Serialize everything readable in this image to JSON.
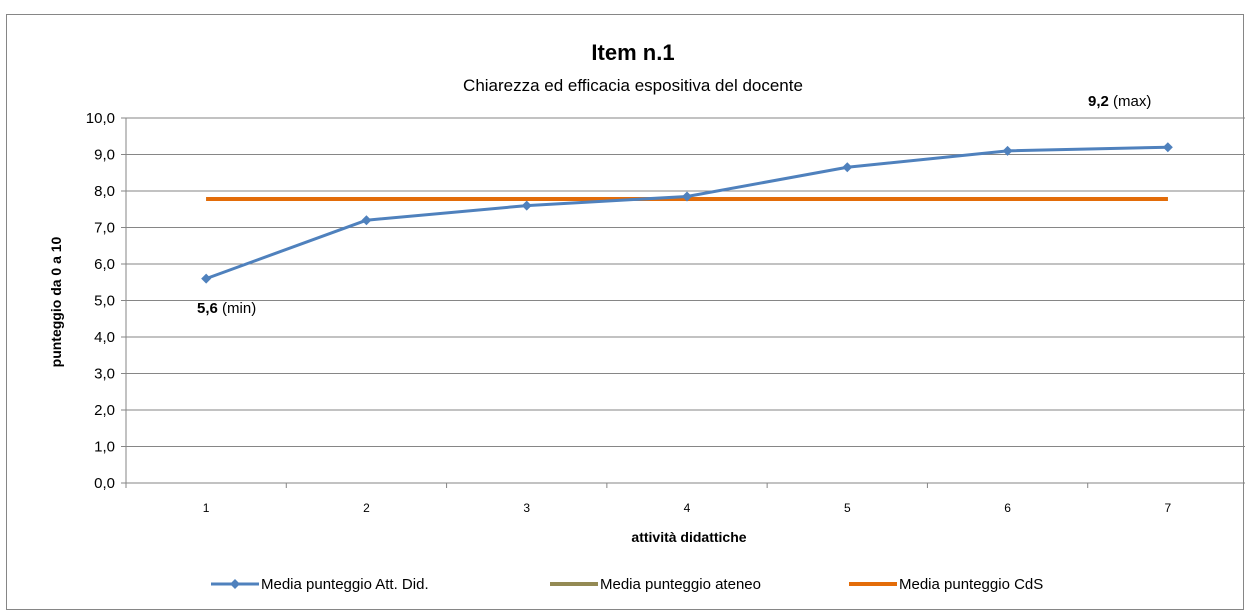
{
  "chart_data": {
    "type": "line",
    "title": "Item n.1",
    "subtitle": "Chiarezza ed efficacia espositiva del docente",
    "xlabel": "attività didattiche",
    "ylabel": "punteggio da 0 a 10",
    "categories": [
      "1",
      "2",
      "3",
      "4",
      "5",
      "6",
      "7"
    ],
    "ylim": [
      0,
      10
    ],
    "yticks": [
      "0,0",
      "1,0",
      "2,0",
      "3,0",
      "4,0",
      "5,0",
      "6,0",
      "7,0",
      "8,0",
      "9,0",
      "10,0"
    ],
    "grid": true,
    "legend_position": "bottom",
    "series": [
      {
        "name": "Media punteggio Att. Did.",
        "values": [
          5.6,
          7.2,
          7.6,
          7.85,
          8.65,
          9.1,
          9.2
        ],
        "color": "#4F81BD",
        "marker": "diamond"
      },
      {
        "name": "Media punteggio ateneo",
        "values": [
          7.78,
          7.78,
          7.78,
          7.78,
          7.78,
          7.78,
          7.78
        ],
        "color": "#948A54",
        "marker": "none"
      },
      {
        "name": "Media punteggio CdS",
        "values": [
          7.78,
          7.78,
          7.78,
          7.78,
          7.78,
          7.78,
          7.78
        ],
        "color": "#E36C09",
        "marker": "none"
      }
    ],
    "annotations": {
      "min": {
        "value": "5,6",
        "suffix": " (min)"
      },
      "max": {
        "value": "9,2",
        "suffix": " (max)"
      }
    }
  }
}
